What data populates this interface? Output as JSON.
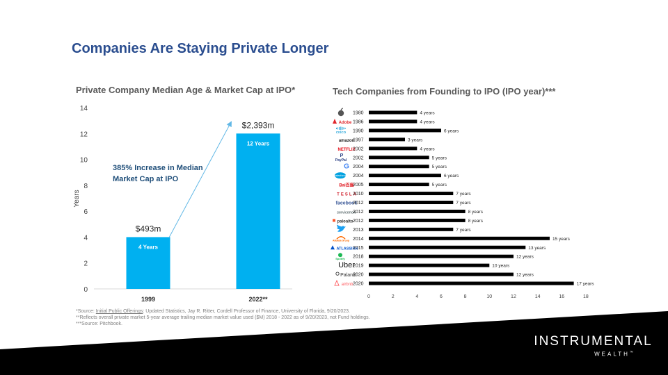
{
  "page": {
    "title": "Companies Are Staying Private Longer",
    "brand_line1": "INSTRUMENTAL",
    "brand_line2": "WEALTH",
    "brand_mark": "™"
  },
  "footnotes": {
    "line1_prefix": "*Source: ",
    "line1_link": "Initial Public Offerings",
    "line1_rest": ": Updated Statistics, Jay R. Ritter, Cordell Professor of Finance, University of Florida, 9/20/2023.",
    "line2": "**Reflects overall private market 5-year average trailing median market value used ($M) 2018 - 2022 as of 9/20/2023, not Fund holdings.",
    "line3": "***Source: Pitchbook."
  },
  "colors": {
    "title": "#2a4d8f",
    "bar_left": "#00b0f0",
    "bar_right": "#000000",
    "band": "#000000"
  },
  "chart_data": [
    {
      "type": "bar",
      "title": "Private Company Median Age & Market Cap at IPO*",
      "ylabel": "Years",
      "xlabel": "",
      "ylim": [
        0,
        14
      ],
      "yticks": [
        0,
        2,
        4,
        6,
        8,
        10,
        12,
        14
      ],
      "categories": [
        "1999",
        "2022**"
      ],
      "values": [
        4,
        12
      ],
      "bar_labels": [
        "4 Years",
        "12 Years"
      ],
      "top_labels": [
        "$493m",
        "$2,393m"
      ],
      "annotation": [
        "385% Increase in Median",
        "Market Cap at IPO"
      ]
    },
    {
      "type": "bar",
      "orientation": "horizontal",
      "title": "Tech Companies from Founding to IPO (IPO year)***",
      "xlim": [
        0,
        18
      ],
      "xticks": [
        0,
        2,
        4,
        6,
        8,
        10,
        12,
        14,
        16,
        18
      ],
      "rows": [
        {
          "company": "",
          "icon": "apple-logo",
          "year": "1980",
          "years": 4,
          "label": "4 years"
        },
        {
          "company": "Adobe",
          "icon": "adobe-logo",
          "year": "1986",
          "years": 4,
          "label": "4 years"
        },
        {
          "company": "CISCO",
          "icon": "cisco-logo",
          "year": "1990",
          "years": 6,
          "label": "6 years"
        },
        {
          "company": "amazon",
          "icon": "amazon-logo",
          "year": "1997",
          "years": 3,
          "label": "3 years"
        },
        {
          "company": "NETFLIX",
          "icon": "netflix-logo",
          "year": "2002",
          "years": 4,
          "label": "4 years"
        },
        {
          "company": "PayPal",
          "icon": "paypal-logo",
          "year": "2002",
          "years": 5,
          "label": "5 years"
        },
        {
          "company": "G",
          "icon": "google-logo",
          "year": "2004",
          "years": 5,
          "label": "5 years"
        },
        {
          "company": "salesforce",
          "icon": "salesforce-logo",
          "year": "2004",
          "years": 6,
          "label": "6 years"
        },
        {
          "company": "Bai百度",
          "icon": "baidu-logo",
          "year": "2005",
          "years": 5,
          "label": "5 years"
        },
        {
          "company": "TESLA",
          "icon": "tesla-logo",
          "year": "2010",
          "years": 7,
          "label": "7 years"
        },
        {
          "company": "facebook",
          "icon": "facebook-logo",
          "year": "2012",
          "years": 7,
          "label": "7 years"
        },
        {
          "company": "servicenow",
          "icon": "servicenow-logo",
          "year": "2012",
          "years": 8,
          "label": "8 years"
        },
        {
          "company": "paloalto",
          "icon": "paloalto-logo",
          "year": "2012",
          "years": 8,
          "label": "8 years"
        },
        {
          "company": "",
          "icon": "twitter-logo",
          "year": "2013",
          "years": 7,
          "label": "7 years"
        },
        {
          "company": "Alibaba Group",
          "icon": "alibaba-logo",
          "year": "2014",
          "years": 15,
          "label": "15 years"
        },
        {
          "company": "ATLASSIAN",
          "icon": "atlassian-logo",
          "year": "2015",
          "years": 13,
          "label": "13 years"
        },
        {
          "company": "Spotify",
          "icon": "spotify-logo",
          "year": "2018",
          "years": 12,
          "label": "12 years"
        },
        {
          "company": "Uber",
          "icon": "uber-logo",
          "year": "2019",
          "years": 10,
          "label": "10 years"
        },
        {
          "company": "Palantir",
          "icon": "palantir-logo",
          "year": "2020",
          "years": 12,
          "label": "12 years"
        },
        {
          "company": "airbnb",
          "icon": "airbnb-logo",
          "year": "2020",
          "years": 17,
          "label": "17 years"
        }
      ]
    }
  ]
}
